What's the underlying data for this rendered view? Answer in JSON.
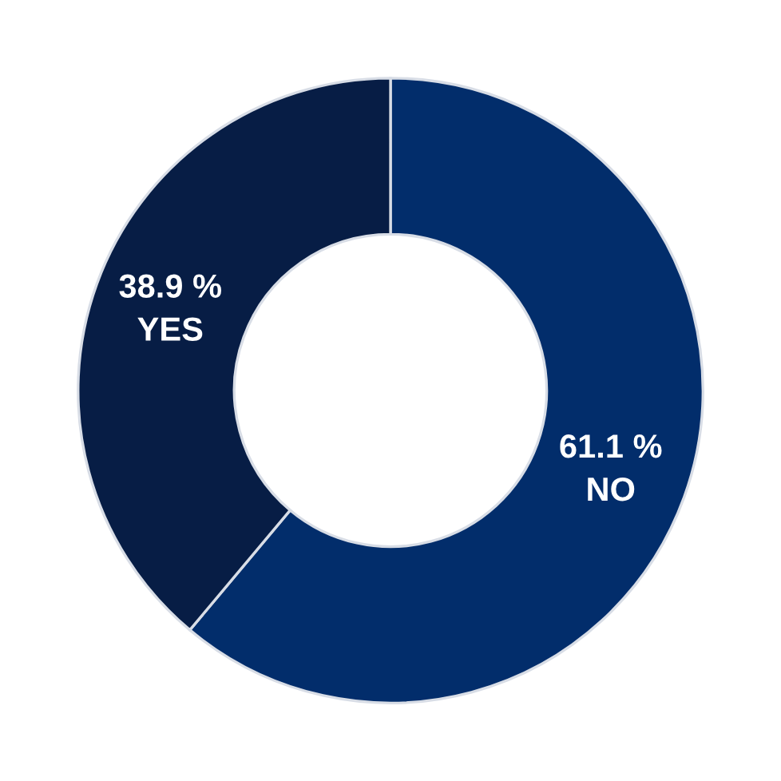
{
  "chart_data": {
    "type": "donut",
    "categories": [
      "NO",
      "YES"
    ],
    "values": [
      61.1,
      38.9
    ],
    "colors": [
      "#022d6b",
      "#071d45"
    ],
    "value_labels": [
      "61.1 %",
      "38.9 %"
    ]
  }
}
